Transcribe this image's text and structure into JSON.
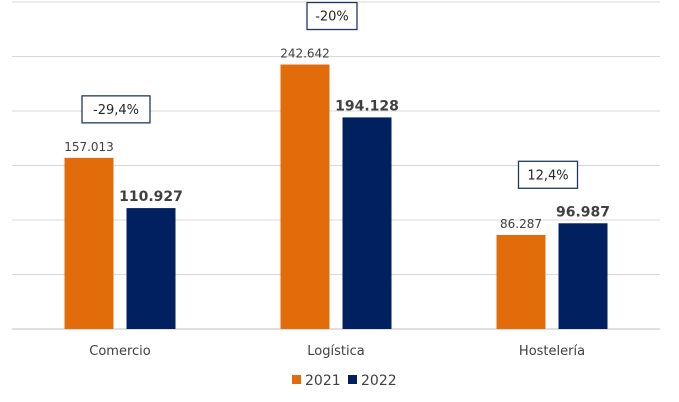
{
  "chart_data": {
    "type": "bar",
    "title": "",
    "xlabel": "",
    "ylabel": "",
    "ylim": [
      0,
      300000
    ],
    "grid": true,
    "gridline_step": 50000,
    "legend_position": "bottom",
    "categories": [
      "Comercio",
      "Logística",
      "Hostelería"
    ],
    "series": [
      {
        "name": "2021",
        "color": "#E36C0A",
        "values": [
          157013,
          242642,
          86287
        ],
        "labels": [
          "157.013",
          "242.642",
          "86.287"
        ]
      },
      {
        "name": "2022",
        "color": "#002060",
        "values": [
          110927,
          194128,
          96987
        ],
        "labels": [
          "110.927",
          "194.128",
          "96.987"
        ]
      }
    ],
    "annotations": [
      "-29,4%",
      "-20%",
      "12,4%"
    ]
  }
}
